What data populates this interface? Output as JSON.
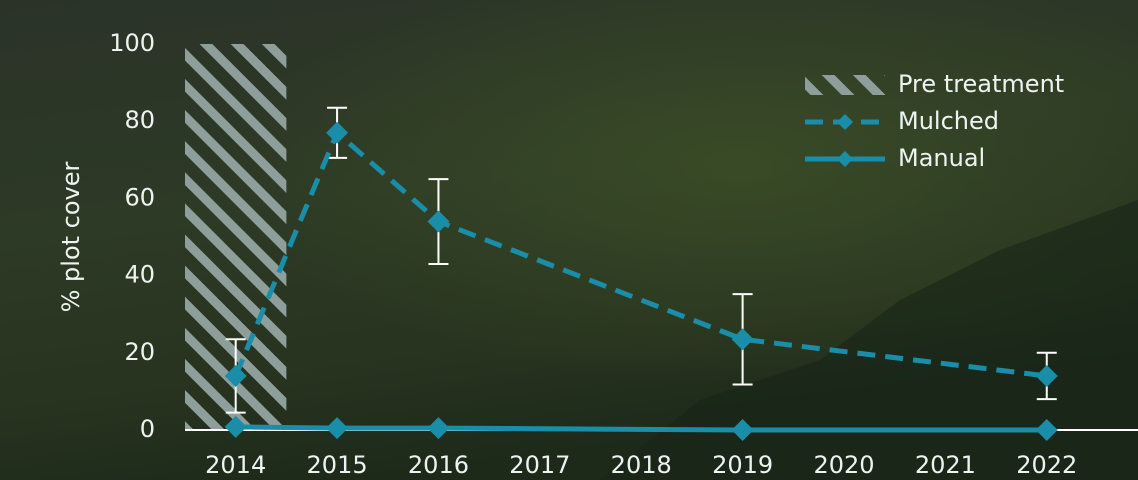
{
  "chart_data": {
    "type": "line",
    "y_label": "% plot cover",
    "xlim": [
      2013.5,
      2022.9
    ],
    "xticks": [
      2014,
      2015,
      2016,
      2017,
      2018,
      2019,
      2020,
      2021,
      2022
    ],
    "ylim": [
      0,
      100
    ],
    "yticks": [
      0,
      20,
      40,
      60,
      80,
      100
    ],
    "shaded_span": {
      "name": "Pre treatment",
      "range": [
        2013.5,
        2014.5
      ],
      "color": "#8e9e9b"
    },
    "series": [
      {
        "name": "Mulched",
        "color": "#1a8ea8",
        "style": "dashed",
        "x": [
          2014,
          2015,
          2016,
          2019,
          2022
        ],
        "values": [
          14,
          77,
          54,
          23.5,
          14
        ],
        "errors": [
          9.5,
          6.5,
          11,
          11.7,
          6
        ]
      },
      {
        "name": "Manual",
        "color": "#1a8ea8",
        "style": "solid",
        "x": [
          2014,
          2015,
          2016,
          2019,
          2022
        ],
        "values": [
          0.8,
          0.5,
          0.5,
          0,
          0
        ]
      }
    ],
    "legend": "top-right"
  }
}
